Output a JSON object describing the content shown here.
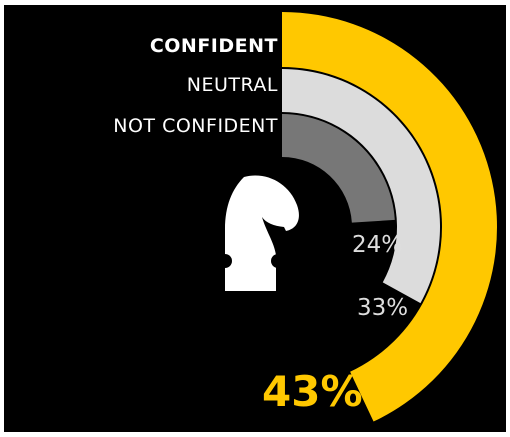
{
  "chart_data": {
    "type": "radial-bar",
    "title": "",
    "series": [
      {
        "name": "CONFIDENT",
        "value": 43,
        "label": "43%",
        "color": "#FFC800"
      },
      {
        "name": "NEUTRAL",
        "value": 33,
        "label": "33%",
        "color": "#DCDCDC"
      },
      {
        "name": "NOT CONFIDENT",
        "value": 24,
        "label": "24%",
        "color": "#777777"
      }
    ],
    "scale_max": 50,
    "background": "#000000",
    "center_icon": "chess-knight-icon"
  }
}
